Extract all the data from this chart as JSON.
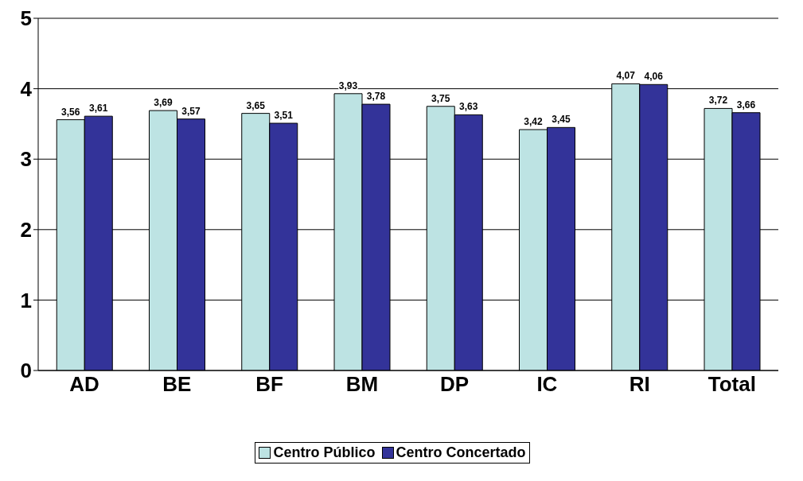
{
  "chart_data": {
    "type": "bar",
    "categories": [
      "AD",
      "BE",
      "BF",
      "BM",
      "DP",
      "IC",
      "RI",
      "Total"
    ],
    "series": [
      {
        "name": "Centro Público",
        "color": "#bde3e3",
        "values": [
          3.56,
          3.69,
          3.65,
          3.93,
          3.75,
          3.42,
          4.07,
          3.72
        ],
        "value_labels": [
          "3,56",
          "3,69",
          "3,65",
          "3,93",
          "3,75",
          "3,42",
          "4,07",
          "3,72"
        ]
      },
      {
        "name": "Centro Concertado",
        "color": "#333399",
        "values": [
          3.61,
          3.57,
          3.51,
          3.78,
          3.63,
          3.45,
          4.06,
          3.66
        ],
        "value_labels": [
          "3,61",
          "3,57",
          "3,51",
          "3,78",
          "3,63",
          "3,45",
          "4,06",
          "3,66"
        ]
      }
    ],
    "ylim": [
      0,
      5
    ],
    "yticks": [
      0,
      1,
      2,
      3,
      4,
      5
    ],
    "grid": "y",
    "legend": "bottom"
  }
}
